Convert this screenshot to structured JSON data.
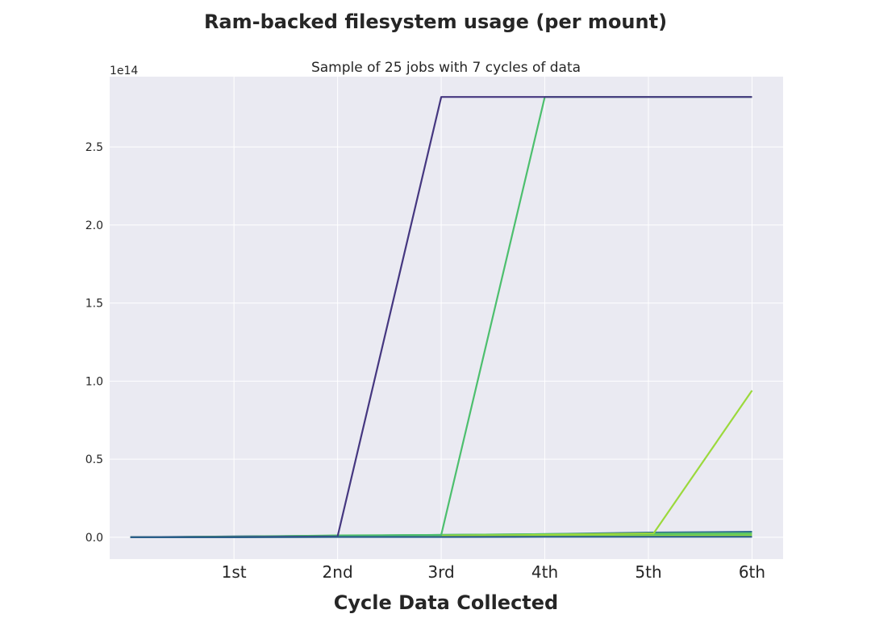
{
  "chart_data": {
    "type": "line",
    "title": "Ram-backed filesystem usage (per mount)",
    "subtitle": "Sample of 25 jobs with 7 cycles of data",
    "xlabel": "Cycle Data Collected",
    "ylabel": "",
    "x_tick_labels": [
      "1st",
      "2nd",
      "3rd",
      "4th",
      "5th",
      "6th"
    ],
    "y_tick_labels": [
      "0.0",
      "0.5",
      "1.0",
      "1.5",
      "2.0",
      "2.5"
    ],
    "y_offset_label": "1e14",
    "xlim": [
      -0.2,
      6.3
    ],
    "ylim": [
      -0.14,
      2.95
    ],
    "y_unit_multiplier": 100000000000000.0,
    "grid": true,
    "series": [
      {
        "color": "#2f6f8e",
        "x": [
          0,
          1,
          2,
          3,
          4,
          5,
          6
        ],
        "y": [
          0,
          0.005,
          0.01,
          0.015,
          0.02,
          0.03,
          0.035
        ]
      },
      {
        "color": "#31918c",
        "x": [
          0,
          1,
          2,
          3,
          4,
          5,
          6
        ],
        "y": [
          0,
          0.003,
          0.006,
          0.01,
          0.014,
          0.018,
          0.022
        ]
      },
      {
        "color": "#3bb278",
        "x": [
          0,
          1,
          2,
          3,
          4,
          5,
          6
        ],
        "y": [
          0,
          0.002,
          0.005,
          0.008,
          0.011,
          0.014,
          0.017
        ]
      },
      {
        "color": "#8fd744",
        "x": [
          0,
          1,
          2,
          3,
          4,
          5,
          6
        ],
        "y": [
          0,
          0.002,
          0.004,
          0.006,
          0.008,
          0.01,
          0.012
        ]
      },
      {
        "color": "#5cc863",
        "x": [
          0,
          1,
          2,
          3,
          4,
          6
        ],
        "y": [
          0,
          0.003,
          0.012,
          0.015,
          0.02,
          0.025
        ]
      },
      {
        "color": "#9bd93c",
        "x": [
          0,
          1,
          2,
          3,
          4,
          5.05,
          6
        ],
        "y": [
          0,
          0.003,
          0.006,
          0.01,
          0.015,
          0.025,
          0.94
        ]
      },
      {
        "color": "#4dbf6e",
        "x": [
          0,
          1,
          2,
          3,
          4,
          5,
          6
        ],
        "y": [
          0,
          0.004,
          0.01,
          0.015,
          2.82,
          2.82,
          2.82
        ]
      },
      {
        "color": "#453780",
        "x": [
          0,
          1,
          2,
          3,
          4,
          5,
          6
        ],
        "y": [
          0,
          0.002,
          0.005,
          2.82,
          2.82,
          2.82,
          2.82
        ]
      },
      {
        "color": "#2a5f8a",
        "x": [
          0,
          1,
          2,
          3,
          4,
          5,
          6
        ],
        "y": [
          0,
          0,
          0.002,
          0.002,
          0.003,
          0.003,
          0.003
        ]
      }
    ]
  }
}
